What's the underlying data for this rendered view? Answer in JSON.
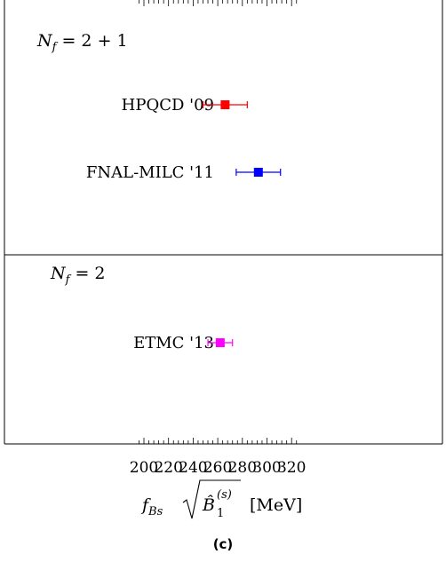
{
  "caption": "(c)",
  "chart_data": {
    "type": "scatter",
    "subtype": "forest-plot",
    "xlabel": "f_{Bs} √(B̂₁^(s)) [MeV]",
    "xlabel_parts": {
      "f": "f",
      "f_sub": "Bs",
      "b": "B̂",
      "b_sub": "1",
      "b_sup": "(s)",
      "unit": "[MeV]"
    },
    "xlim": [
      190,
      327
    ],
    "xticks": [
      200,
      220,
      240,
      260,
      280,
      300,
      320
    ],
    "grid": false,
    "panels": [
      {
        "label": "N_f = 2 + 1",
        "label_parts": {
          "n": "N",
          "sub": "f",
          "eq": "= 2 + 1"
        },
        "entries": [
          {
            "name": "HPQCD '09",
            "value": 266,
            "err_low": 18,
            "err_high": 18,
            "color": "#ff0000"
          },
          {
            "name": "FNAL-MILC '11",
            "value": 293,
            "err_low": 18,
            "err_high": 18,
            "color": "#0000ff"
          }
        ]
      },
      {
        "label": "N_f = 2",
        "label_parts": {
          "n": "N",
          "sub": "f",
          "eq": "= 2"
        },
        "entries": [
          {
            "name": "ETMC '13",
            "value": 262,
            "err_low": 10,
            "err_high": 10,
            "color": "#ff00ff"
          }
        ]
      }
    ]
  }
}
